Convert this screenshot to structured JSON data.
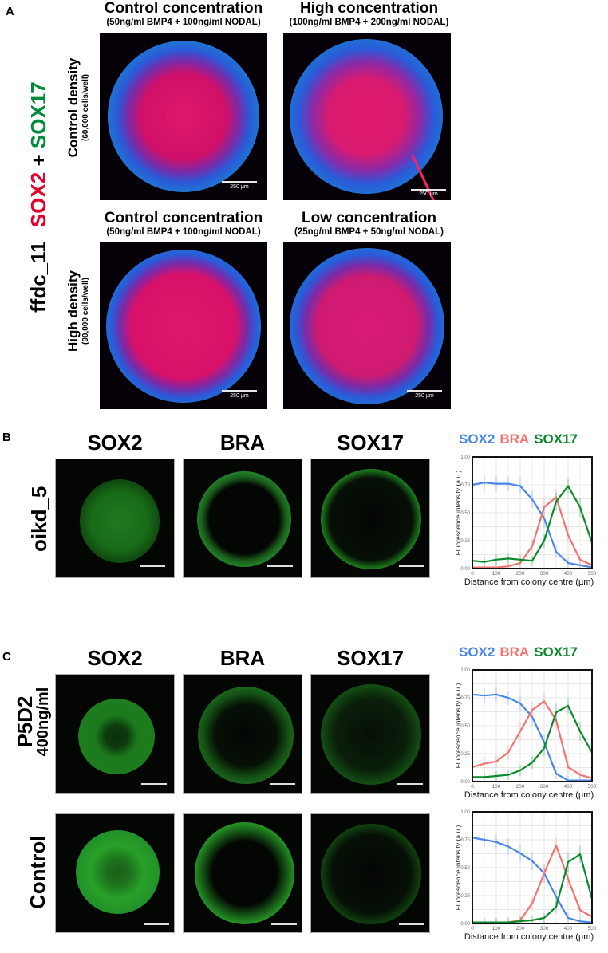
{
  "panel_a": {
    "letter": "A",
    "side_label": {
      "line": "ffdc_11",
      "marker1": "SOX2",
      "plus": "+",
      "marker2": "SOX17"
    },
    "columns": [
      {
        "title": "Control concentration",
        "subtitle": "(50ng/ml BMP4 + 100ng/ml NODAL)"
      },
      {
        "title": "High concentration",
        "subtitle": "(100ng/ml BMP4 + 200ng/ml NODAL)"
      },
      {
        "title": "Control concentration",
        "subtitle": "(50ng/ml BMP4 + 100ng/ml NODAL)"
      },
      {
        "title": "Low concentration",
        "subtitle": "(25ng/ml BMP4 + 50ng/ml NODAL)"
      }
    ],
    "rows": [
      {
        "label": "Control density",
        "sublabel": "(60,000 cells/well)"
      },
      {
        "label": "High density",
        "sublabel": "(90,000 cells/well)"
      }
    ],
    "scale_bar": "250 µm",
    "colors": {
      "sox2": "#e4002b",
      "sox17": "#008c3a",
      "nuclei": "#1a3cff"
    }
  },
  "panel_b": {
    "letter": "B",
    "row_label": "oikd_5",
    "headers": [
      "SOX2",
      "BRA",
      "SOX17"
    ]
  },
  "panel_c": {
    "letter": "C",
    "headers": [
      "SOX2",
      "BRA",
      "SOX17"
    ],
    "rows": [
      {
        "label": "P5D2",
        "sublabel": "400ng/ml"
      },
      {
        "label": "Control",
        "sublabel": ""
      }
    ]
  },
  "legend": {
    "sox2": "SOX2",
    "bra": "BRA",
    "sox17": "SOX17"
  },
  "axis": {
    "ylabel": "Fluorescence intensity (a.u.)",
    "xlabel": "Distance from colony centre (µm)",
    "yticks": [
      "0.00",
      "0.25",
      "0.50",
      "0.75",
      "1.00"
    ],
    "xticks": [
      "0",
      "100",
      "200",
      "300",
      "400",
      "500"
    ]
  },
  "chart_data": [
    {
      "type": "line",
      "title": "oikd_5",
      "xlabel": "Distance from colony centre (µm)",
      "ylabel": "Fluorescence intensity (a.u.)",
      "xlim": [
        0,
        500
      ],
      "ylim": [
        0,
        1
      ],
      "grid": true,
      "legend_position": "top",
      "x": [
        0,
        50,
        100,
        150,
        200,
        250,
        300,
        350,
        400,
        450,
        500
      ],
      "series": [
        {
          "name": "SOX2",
          "color": "#4a86e8",
          "values": [
            0.75,
            0.77,
            0.76,
            0.76,
            0.74,
            0.62,
            0.45,
            0.15,
            0.05,
            0.03,
            0.01
          ]
        },
        {
          "name": "BRA",
          "color": "#f07470",
          "values": [
            0.01,
            0.01,
            0.01,
            0.02,
            0.05,
            0.2,
            0.55,
            0.64,
            0.3,
            0.08,
            0.03
          ]
        },
        {
          "name": "SOX17",
          "color": "#0a8a2a",
          "values": [
            0.07,
            0.06,
            0.08,
            0.09,
            0.08,
            0.07,
            0.25,
            0.6,
            0.74,
            0.55,
            0.23
          ]
        }
      ]
    },
    {
      "type": "line",
      "title": "P5D2 400ng/ml",
      "xlabel": "Distance from colony centre (µm)",
      "ylabel": "Fluorescence intensity (a.u.)",
      "xlim": [
        0,
        500
      ],
      "ylim": [
        0,
        1
      ],
      "grid": true,
      "legend_position": "top",
      "x": [
        0,
        50,
        100,
        150,
        200,
        250,
        300,
        350,
        400,
        450,
        500
      ],
      "series": [
        {
          "name": "SOX2",
          "color": "#4a86e8",
          "values": [
            0.78,
            0.77,
            0.78,
            0.75,
            0.7,
            0.58,
            0.35,
            0.07,
            0.01,
            0.01,
            0.01
          ]
        },
        {
          "name": "BRA",
          "color": "#f07470",
          "values": [
            0.13,
            0.16,
            0.18,
            0.26,
            0.45,
            0.64,
            0.72,
            0.55,
            0.13,
            0.06,
            0.03
          ]
        },
        {
          "name": "SOX17",
          "color": "#0a8a2a",
          "values": [
            0.04,
            0.04,
            0.05,
            0.06,
            0.1,
            0.17,
            0.3,
            0.62,
            0.68,
            0.45,
            0.26
          ]
        }
      ]
    },
    {
      "type": "line",
      "title": "Control",
      "xlabel": "Distance from colony centre (µm)",
      "ylabel": "Fluorescence intensity (a.u.)",
      "xlim": [
        0,
        500
      ],
      "ylim": [
        0,
        1
      ],
      "grid": true,
      "legend_position": "none",
      "x": [
        0,
        50,
        100,
        150,
        200,
        250,
        300,
        350,
        400,
        450,
        500
      ],
      "series": [
        {
          "name": "SOX2",
          "color": "#4a86e8",
          "values": [
            0.77,
            0.75,
            0.73,
            0.69,
            0.63,
            0.56,
            0.45,
            0.24,
            0.05,
            0.02,
            0.01
          ]
        },
        {
          "name": "BRA",
          "color": "#f07470",
          "values": [
            0.0,
            0.0,
            0.0,
            0.01,
            0.03,
            0.18,
            0.45,
            0.7,
            0.4,
            0.12,
            0.06
          ]
        },
        {
          "name": "SOX17",
          "color": "#0a8a2a",
          "values": [
            0.01,
            0.01,
            0.01,
            0.01,
            0.02,
            0.03,
            0.05,
            0.15,
            0.55,
            0.62,
            0.22
          ]
        }
      ]
    }
  ]
}
